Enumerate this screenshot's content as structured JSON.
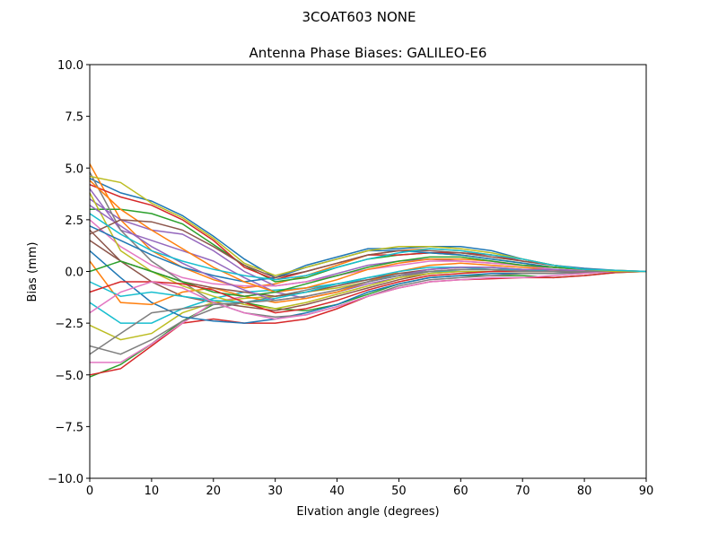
{
  "chart_data": {
    "type": "line",
    "suptitle": "3COAT603        NONE",
    "title": "Antenna Phase Biases: GALILEO-E6",
    "xlabel": "Elvation angle (degrees)",
    "ylabel": "Bias (mm)",
    "xlim": [
      0,
      90
    ],
    "ylim": [
      -10,
      10
    ],
    "xticks": [
      0,
      10,
      20,
      30,
      40,
      50,
      60,
      70,
      80,
      90
    ],
    "xtick_labels": [
      "0",
      "10",
      "20",
      "30",
      "40",
      "50",
      "60",
      "70",
      "80",
      "90"
    ],
    "yticks": [
      -10,
      -7.5,
      -5,
      -2.5,
      0,
      2.5,
      5,
      7.5,
      10
    ],
    "ytick_labels": [
      "−10.0",
      "−7.5",
      "−5.0",
      "−2.5",
      "0.0",
      "2.5",
      "5.0",
      "7.5",
      "10.0"
    ],
    "grid": false,
    "colors": [
      "#1f77b4",
      "#ff7f0e",
      "#2ca02c",
      "#d62728",
      "#9467bd",
      "#8c564b",
      "#e377c2",
      "#7f7f7f",
      "#bcbd22",
      "#17becf"
    ],
    "x": [
      0,
      5,
      10,
      15,
      20,
      25,
      30,
      35,
      40,
      45,
      50,
      55,
      60,
      65,
      70,
      75,
      80,
      85,
      90
    ],
    "series": [
      [
        4.5,
        3.8,
        3.4,
        2.7,
        1.7,
        0.6,
        -0.3,
        0.3,
        0.7,
        1.1,
        1.1,
        1.2,
        1.2,
        1.0,
        0.6,
        0.3,
        0.15,
        0.05,
        0
      ],
      [
        5.2,
        2.5,
        1.0,
        0.2,
        -0.4,
        -0.8,
        -0.6,
        -0.2,
        0.3,
        0.8,
        1.0,
        1.1,
        1.0,
        0.8,
        0.6,
        0.3,
        0.1,
        0.05,
        0
      ],
      [
        -5.1,
        -4.5,
        -3.5,
        -2.4,
        -1.6,
        -1.5,
        -1.8,
        -1.9,
        -1.6,
        -1.1,
        -0.6,
        -0.3,
        -0.2,
        -0.2,
        -0.2,
        -0.3,
        -0.2,
        -0.05,
        0
      ],
      [
        -5.0,
        -4.7,
        -3.6,
        -2.5,
        -2.3,
        -2.5,
        -2.5,
        -2.3,
        -1.8,
        -1.2,
        -0.8,
        -0.5,
        -0.4,
        -0.35,
        -0.3,
        -0.3,
        -0.2,
        -0.05,
        0
      ],
      [
        4.0,
        2.0,
        1.5,
        1.0,
        0.5,
        -0.3,
        -1.0,
        -1.3,
        -1.0,
        -0.6,
        -0.3,
        0,
        0.1,
        0.1,
        0.05,
        0,
        0,
        0,
        0
      ],
      [
        2.0,
        0.5,
        -0.5,
        -1.2,
        -1.5,
        -1.7,
        -1.9,
        -1.6,
        -1.2,
        -0.8,
        -0.4,
        -0.1,
        0,
        0,
        0,
        0,
        0,
        0,
        0
      ],
      [
        -4.4,
        -4.4,
        -3.5,
        -2.5,
        -1.5,
        -1.2,
        -1.0,
        -0.8,
        -0.6,
        -0.4,
        -0.2,
        0,
        0.1,
        0.1,
        0.1,
        0.05,
        0,
        0,
        0
      ],
      [
        -3.6,
        -4.0,
        -3.3,
        -2.4,
        -1.8,
        -1.5,
        -1.2,
        -0.9,
        -0.6,
        -0.3,
        -0.1,
        0,
        0,
        0,
        0,
        0,
        0,
        0,
        0
      ],
      [
        -2.6,
        -3.3,
        -3.0,
        -2.0,
        -1.5,
        -1.3,
        -1.2,
        -1.0,
        -0.8,
        -0.5,
        -0.2,
        0,
        0.1,
        0.1,
        0,
        0,
        0,
        0,
        0
      ],
      [
        -1.5,
        -2.5,
        -2.5,
        -1.8,
        -1.3,
        -1.0,
        -0.9,
        -0.8,
        -0.6,
        -0.4,
        -0.2,
        0,
        0,
        0,
        0,
        0,
        0,
        0,
        0
      ],
      [
        1.0,
        -0.3,
        -1.5,
        -2.2,
        -2.4,
        -2.5,
        -2.3,
        -2.0,
        -1.6,
        -1.0,
        -0.6,
        -0.3,
        -0.2,
        -0.1,
        -0.1,
        -0.1,
        -0.05,
        0,
        0
      ],
      [
        0.5,
        -1.5,
        -1.6,
        -1.0,
        -0.8,
        -1.2,
        -1.5,
        -1.3,
        -1.0,
        -0.5,
        0,
        0.3,
        0.4,
        0.3,
        0.2,
        0.1,
        0,
        0,
        0
      ],
      [
        3.0,
        3.0,
        2.8,
        2.3,
        1.3,
        0.3,
        -0.5,
        -0.3,
        0.2,
        0.6,
        0.8,
        0.9,
        0.8,
        0.6,
        0.4,
        0.2,
        0.1,
        0,
        0
      ],
      [
        4.2,
        3.6,
        3.2,
        2.5,
        1.5,
        0.2,
        -0.4,
        0.0,
        0.4,
        0.8,
        0.8,
        0.9,
        0.9,
        0.8,
        0.5,
        0.3,
        0.1,
        0,
        0
      ],
      [
        3.5,
        2.5,
        2.0,
        1.8,
        1.0,
        0.0,
        -0.7,
        -0.5,
        -0.1,
        0.3,
        0.5,
        0.6,
        0.5,
        0.4,
        0.3,
        0.2,
        0.1,
        0,
        0
      ],
      [
        1.5,
        0.5,
        0.0,
        -0.5,
        -0.8,
        -1.0,
        -1.2,
        -1.0,
        -0.7,
        -0.4,
        -0.1,
        0.1,
        0.2,
        0.2,
        0.1,
        0,
        0,
        0,
        0
      ],
      [
        2.5,
        1.2,
        0.3,
        -0.3,
        -0.6,
        -0.7,
        -0.7,
        -0.5,
        -0.2,
        0.1,
        0.3,
        0.5,
        0.5,
        0.4,
        0.3,
        0.1,
        0.05,
        0,
        0
      ],
      [
        4.8,
        2.0,
        0.5,
        -0.5,
        -1.5,
        -2.0,
        -2.2,
        -2.1,
        -1.7,
        -1.2,
        -0.7,
        -0.4,
        -0.3,
        -0.2,
        -0.1,
        -0.1,
        -0.05,
        0,
        0
      ],
      [
        3.8,
        1.0,
        0.0,
        -0.7,
        -1.2,
        -1.6,
        -1.8,
        -1.5,
        -1.1,
        -0.7,
        -0.3,
        -0.1,
        0,
        0,
        0,
        0,
        0,
        0,
        0
      ],
      [
        -0.5,
        -1.2,
        -1.0,
        -1.2,
        -1.4,
        -1.5,
        -1.3,
        -1.0,
        -0.6,
        -0.3,
        0,
        0.2,
        0.2,
        0.1,
        0.1,
        0,
        0,
        0,
        0
      ],
      [
        2.2,
        1.5,
        0.8,
        0.2,
        -0.2,
        -0.5,
        -0.3,
        0.2,
        0.6,
        1.0,
        1.0,
        0.9,
        0.8,
        0.6,
        0.4,
        0.2,
        0.1,
        0,
        0
      ],
      [
        4.4,
        3.0,
        2.0,
        1.1,
        0.2,
        -0.5,
        -1.0,
        -0.8,
        -0.4,
        0.1,
        0.4,
        0.6,
        0.6,
        0.5,
        0.3,
        0.2,
        0.1,
        0,
        0
      ],
      [
        0.0,
        0.5,
        0.0,
        -0.5,
        -1.0,
        -1.2,
        -1.0,
        -0.6,
        -0.2,
        0.2,
        0.5,
        0.7,
        0.7,
        0.5,
        0.3,
        0.2,
        0.1,
        0,
        0
      ],
      [
        -1.0,
        -0.5,
        -0.5,
        -0.6,
        -0.9,
        -1.5,
        -2.0,
        -1.8,
        -1.4,
        -0.9,
        -0.5,
        -0.2,
        -0.1,
        0,
        0,
        0,
        0,
        0,
        0
      ],
      [
        3.2,
        2.2,
        1.2,
        0.4,
        -0.3,
        -0.9,
        -1.4,
        -1.2,
        -0.9,
        -0.5,
        -0.2,
        0.1,
        0.2,
        0.2,
        0.1,
        0.1,
        0,
        0,
        0
      ],
      [
        1.8,
        2.5,
        2.4,
        2.0,
        1.2,
        0.3,
        -0.3,
        0.0,
        0.4,
        0.8,
        1.0,
        1.0,
        0.9,
        0.7,
        0.5,
        0.3,
        0.1,
        0,
        0
      ],
      [
        -2.0,
        -1.0,
        -0.5,
        -0.8,
        -1.5,
        -2.0,
        -2.3,
        -2.1,
        -1.7,
        -1.2,
        -0.8,
        -0.5,
        -0.4,
        -0.3,
        -0.3,
        -0.2,
        -0.1,
        0,
        0
      ],
      [
        -4.0,
        -3.0,
        -2.0,
        -1.8,
        -1.6,
        -1.5,
        -1.4,
        -1.2,
        -0.9,
        -0.5,
        -0.2,
        0,
        0.1,
        0.1,
        0,
        0,
        0,
        0,
        0
      ],
      [
        4.6,
        4.3,
        3.3,
        2.6,
        1.6,
        0.4,
        -0.2,
        0.2,
        0.6,
        1.0,
        1.2,
        1.2,
        1.1,
        0.9,
        0.6,
        0.3,
        0.1,
        0,
        0
      ],
      [
        2.8,
        1.8,
        1.0,
        0.5,
        0.1,
        -0.2,
        -0.4,
        -0.2,
        0.2,
        0.6,
        0.9,
        1.1,
        1.0,
        0.8,
        0.6,
        0.3,
        0.1,
        0.05,
        0
      ]
    ]
  }
}
